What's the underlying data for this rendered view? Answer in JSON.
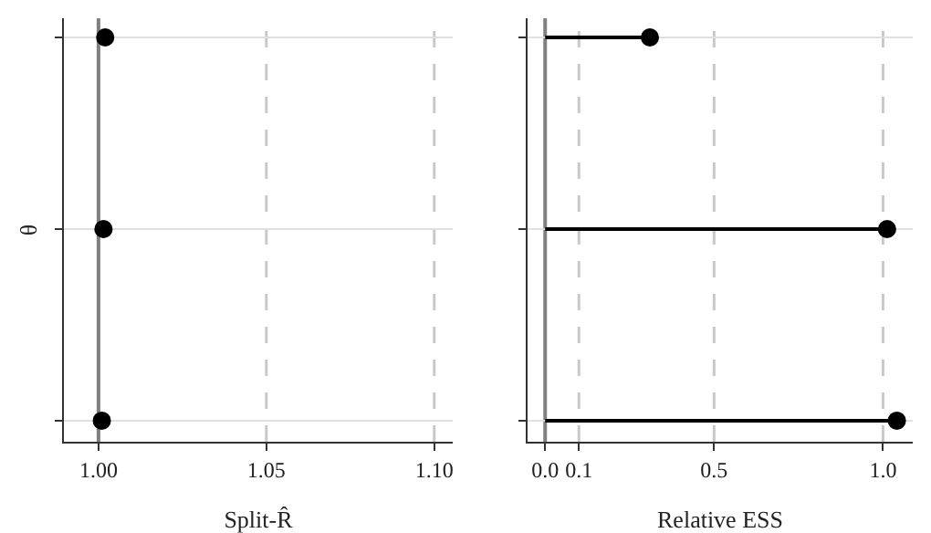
{
  "chart_data": [
    {
      "type": "scatter",
      "orientation": "horizontal",
      "ylabel": "θ",
      "xlabel": "Split-R̂",
      "categories": [
        null,
        null,
        null
      ],
      "series": [
        {
          "color": "#000000",
          "values": [
            1.002,
            1.0015,
            1.001
          ]
        }
      ],
      "xlim": [
        0.9897,
        1.1055
      ],
      "xticks": [
        {
          "value": 1,
          "label": "1.00"
        },
        1.05,
        {
          "value": 1.1,
          "label": "1.10"
        }
      ],
      "ref_lines": [
        {
          "axis": "x",
          "value": 1,
          "color": "#808080",
          "line_style": "solid"
        },
        {
          "axis": "x",
          "value": 1.05,
          "color": "#c8c8c8",
          "line_style": "dashed"
        },
        {
          "axis": "x",
          "value": 1.1,
          "color": "#c8c8c8",
          "line_style": "dashed"
        }
      ],
      "grid": "y",
      "tick_labels": "x",
      "marker": "circle"
    },
    {
      "type": "lollipop",
      "orientation": "horizontal",
      "xlabel": "Relative ESS",
      "categories": [
        null,
        null,
        null
      ],
      "series": [
        {
          "color": "#000000",
          "values": [
            0.31,
            1.012,
            1.041
          ]
        }
      ],
      "xlim": [
        -0.052,
        1.088
      ],
      "xticks": [
        {
          "value": 0,
          "label": "0.0"
        },
        0.1,
        0.5,
        {
          "value": 1,
          "label": "1.0"
        }
      ],
      "ref_lines": [
        {
          "axis": "x",
          "value": 0,
          "color": "#808080",
          "line_style": "solid"
        },
        {
          "axis": "x",
          "value": 0.1,
          "color": "#c8c8c8",
          "line_style": "dashed"
        },
        {
          "axis": "x",
          "value": 0.5,
          "color": "#c8c8c8",
          "line_style": "dashed"
        },
        {
          "axis": "x",
          "value": 1,
          "color": "#c8c8c8",
          "line_style": "dashed"
        }
      ],
      "grid": "y",
      "tick_labels": "x",
      "marker": "circle"
    }
  ]
}
